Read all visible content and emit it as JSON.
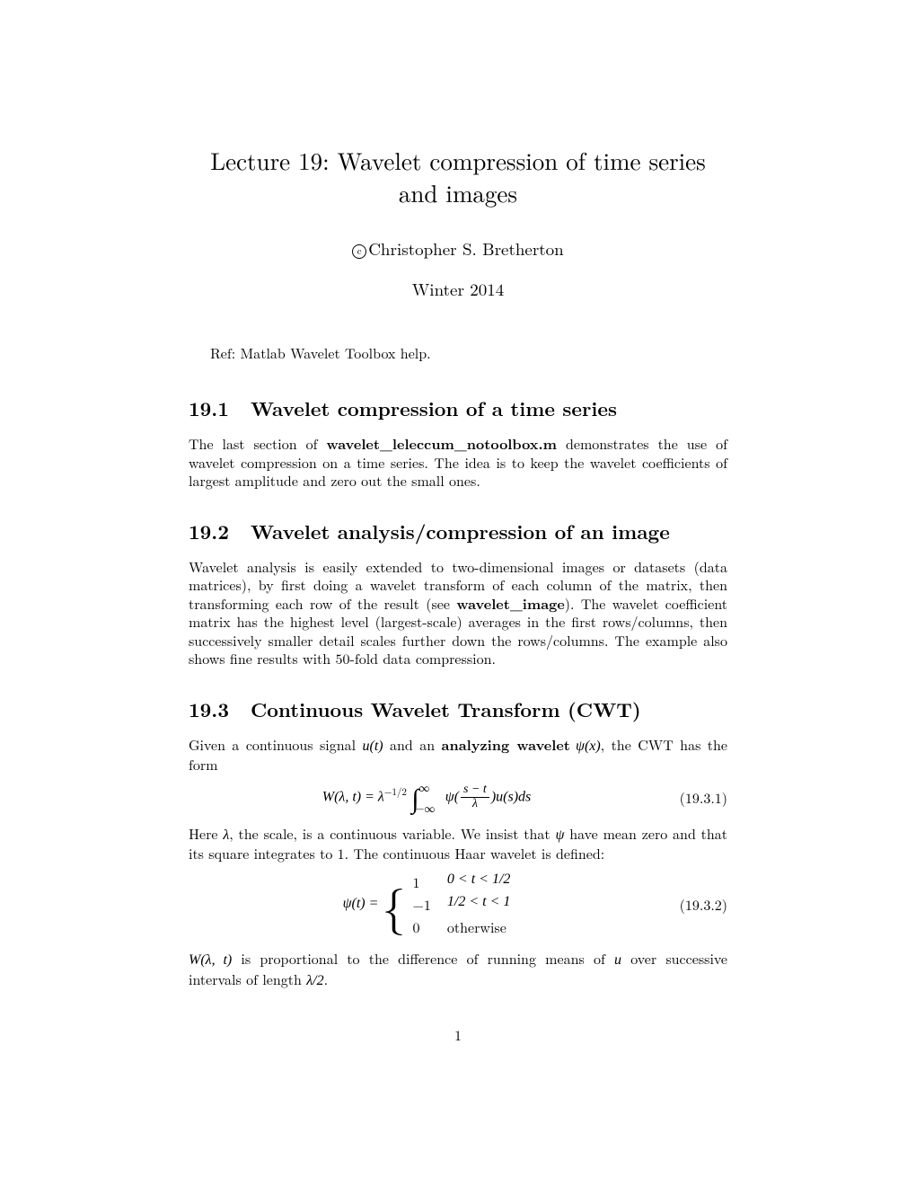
{
  "title_line1": "Lecture 19: Wavelet compression of time series",
  "title_line2": "and images",
  "copyright_char": "c",
  "author": "Christopher S. Bretherton",
  "date": "Winter 2014",
  "ref_line": "Ref: Matlab Wavelet Toolbox help.",
  "sec1": {
    "num": "19.1",
    "title": "Wavelet compression of a time series",
    "p1a": "The last section of ",
    "p1b": "wavelet_leleccum_notoolbox.m",
    "p1c": " demonstrates the use of wavelet compression on a time series. The idea is to keep the wavelet coefficients of largest amplitude and zero out the small ones."
  },
  "sec2": {
    "num": "19.2",
    "title": "Wavelet analysis/compression of an image",
    "p1a": "Wavelet analysis is easily extended to two-dimensional images or datasets (data matrices), by first doing a wavelet transform of each column of the matrix, then transforming each row of the result (see ",
    "p1b": "wavelet_image",
    "p1c": "). The wavelet coefficient matrix has the highest level (largest-scale) averages in the first rows/columns, then successively smaller detail scales further down the rows/columns. The example also shows fine results with 50-fold data compression."
  },
  "sec3": {
    "num": "19.3",
    "title": "Continuous Wavelet Transform (CWT)",
    "p1a": "Given a continuous signal ",
    "p1b": "u(t)",
    "p1c": " and an ",
    "p1d": "analyzing wavelet",
    "p1e": " ψ(x)",
    "p1f": ", the CWT has the form",
    "eq1": {
      "lhs": "W(λ, t) = λ",
      "exp": "−1/2",
      "int_upper": "∞",
      "int_lower": "−∞",
      "psi": "ψ(",
      "frac_num": "s − t",
      "frac_den": "λ",
      "tail": ")u(s)ds",
      "label": "(19.3.1)"
    },
    "p2a": "Here ",
    "p2b": "λ",
    "p2c": ", the scale, is a continuous variable. We insist that ",
    "p2d": "ψ",
    "p2e": " have mean zero and that its square integrates to 1. The continuous Haar wavelet is defined:",
    "eq2": {
      "lhs": "ψ(t) = ",
      "c1v": "1",
      "c1c": "0 < t < 1/2",
      "c2v": "−1",
      "c2c": "1/2 < t < 1",
      "c3v": "0",
      "c3c": "otherwise",
      "label": "(19.3.2)"
    },
    "p3a": "W(λ, t)",
    "p3b": " is proportional to the difference of running means of ",
    "p3c": "u",
    "p3d": " over successive intervals of length ",
    "p3e": "λ/2",
    "p3f": "."
  },
  "pagenum": "1"
}
